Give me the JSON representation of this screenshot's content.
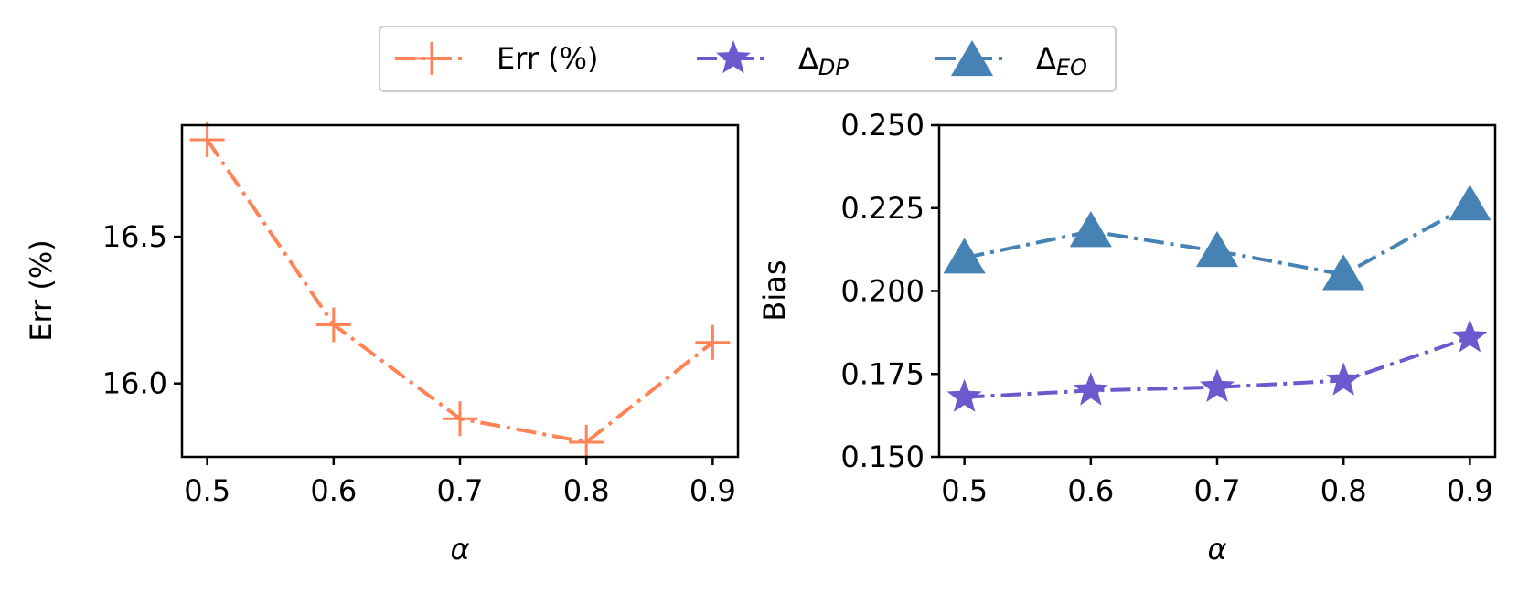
{
  "legend": {
    "position": "top-center",
    "entries": [
      {
        "key": "err",
        "label": "Err (%)",
        "marker": "plus-marker",
        "color": "#FF8356"
      },
      {
        "key": "dp",
        "label": "Δ",
        "sub": "DP",
        "marker": "star-marker",
        "color": "#6A5ACD"
      },
      {
        "key": "eo",
        "label": "Δ",
        "sub": "EO",
        "marker": "triangle-marker",
        "color": "#4682B4"
      }
    ]
  },
  "chart_data": [
    {
      "type": "line",
      "xlabel": "α",
      "ylabel": "Err (%)",
      "x": [
        0.5,
        0.6,
        0.7,
        0.8,
        0.9
      ],
      "xlim": [
        0.48,
        0.92
      ],
      "ylim": [
        15.75,
        16.88
      ],
      "xticks": [
        "0.5",
        "0.6",
        "0.7",
        "0.8",
        "0.9"
      ],
      "yticks": [
        {
          "value": 16.0,
          "label": "16.0"
        },
        {
          "value": 16.5,
          "label": "16.5"
        }
      ],
      "series": [
        {
          "name": "Err (%)",
          "values": [
            16.83,
            16.2,
            15.88,
            15.8,
            16.14
          ],
          "color": "#FF8356",
          "marker": "plus",
          "linestyle": "dashdot"
        }
      ]
    },
    {
      "type": "line",
      "xlabel": "α",
      "ylabel": "Bias",
      "x": [
        0.5,
        0.6,
        0.7,
        0.8,
        0.9
      ],
      "xlim": [
        0.48,
        0.92
      ],
      "ylim": [
        0.15,
        0.25
      ],
      "xticks": [
        "0.5",
        "0.6",
        "0.7",
        "0.8",
        "0.9"
      ],
      "yticks": [
        {
          "value": 0.15,
          "label": "0.150"
        },
        {
          "value": 0.175,
          "label": "0.175"
        },
        {
          "value": 0.2,
          "label": "0.200"
        },
        {
          "value": 0.225,
          "label": "0.225"
        },
        {
          "value": 0.25,
          "label": "0.250"
        }
      ],
      "series": [
        {
          "name": "Δ_DP",
          "values": [
            0.168,
            0.17,
            0.171,
            0.173,
            0.186
          ],
          "color": "#6A5ACD",
          "marker": "star",
          "linestyle": "dashdot"
        },
        {
          "name": "Δ_EO",
          "values": [
            0.21,
            0.218,
            0.212,
            0.205,
            0.226
          ],
          "color": "#4682B4",
          "marker": "triangle",
          "linestyle": "dashdot"
        }
      ]
    }
  ]
}
